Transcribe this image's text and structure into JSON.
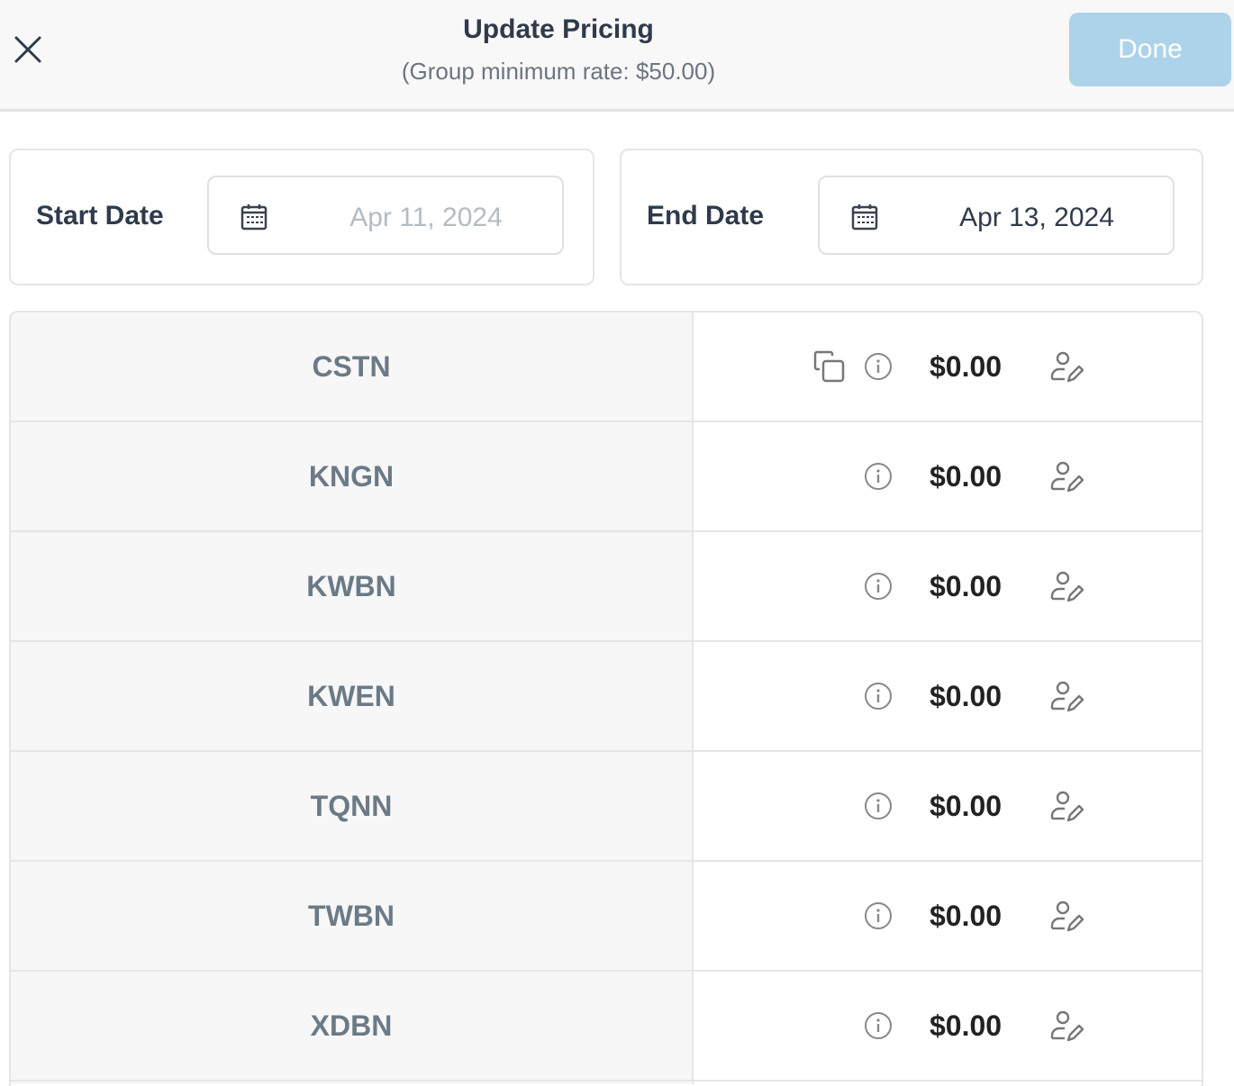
{
  "header": {
    "title": "Update Pricing",
    "subtitle": "(Group minimum rate: $50.00)",
    "done_label": "Done",
    "done_color": "#add3ea",
    "close_icon": "close-icon"
  },
  "dates": {
    "start": {
      "label": "Start Date",
      "value": "Apr 11, 2024",
      "value_color": "#b4bcc2"
    },
    "end": {
      "label": "End Date",
      "value": "Apr 13, 2024",
      "value_color": "#2f3a4a"
    }
  },
  "rows": [
    {
      "code": "CSTN",
      "price": "$0.00",
      "has_copy": true
    },
    {
      "code": "KNGN",
      "price": "$0.00",
      "has_copy": false
    },
    {
      "code": "KWBN",
      "price": "$0.00",
      "has_copy": false
    },
    {
      "code": "KWEN",
      "price": "$0.00",
      "has_copy": false
    },
    {
      "code": "TQNN",
      "price": "$0.00",
      "has_copy": false
    },
    {
      "code": "TWBN",
      "price": "$0.00",
      "has_copy": false
    },
    {
      "code": "XDBN",
      "price": "$0.00",
      "has_copy": false
    }
  ]
}
